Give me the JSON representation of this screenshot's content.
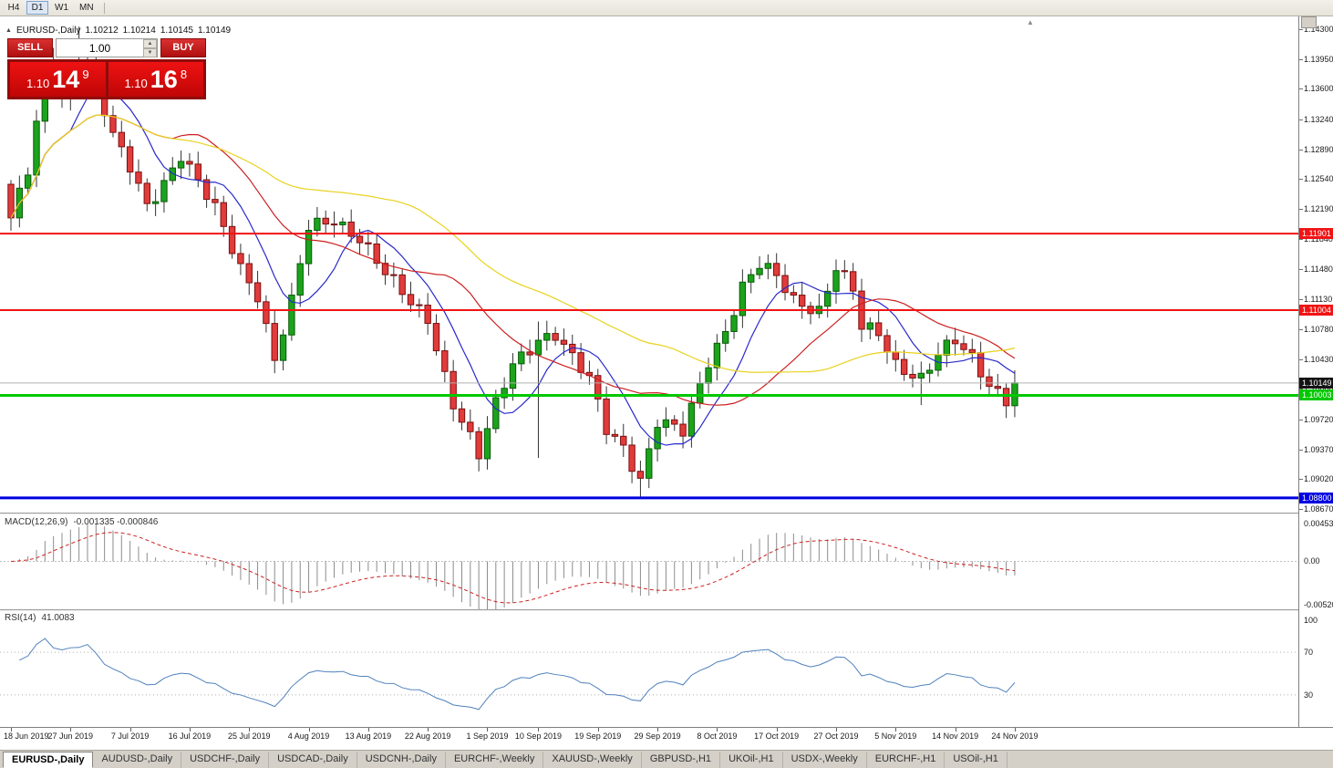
{
  "colors": {
    "bull": "#1ca31c",
    "bear": "#e13b3b",
    "wick": "#333333",
    "ma_fast": "#2929cc",
    "ma_mid": "#cc1f1f",
    "ma_slow": "#e8d21e",
    "macd_hist": "#8c8c8c",
    "macd_signal": "#cc2222",
    "rsi_line": "#4f81bd",
    "level_red": "#f01414",
    "level_green": "#00c800",
    "level_blue": "#0000e0",
    "current_box": "#141414",
    "current_line": "#b0b0b0"
  },
  "icons": {
    "collapse": "▲",
    "shift_marker": "▲",
    "spin_up": "▲",
    "spin_down": "▼"
  },
  "toolbar": {
    "timeframes": [
      {
        "label": "H4",
        "active": false
      },
      {
        "label": "D1",
        "active": true
      },
      {
        "label": "W1",
        "active": false
      },
      {
        "label": "MN",
        "active": false
      }
    ]
  },
  "chart_header": {
    "symbol": "EURUSD-,Daily",
    "open": "1.10212",
    "high": "1.10214",
    "low": "1.10145",
    "close": "1.10149"
  },
  "trade_panel": {
    "sell_label": "SELL",
    "buy_label": "BUY",
    "volume": "1.00",
    "sell_price": {
      "prefix": "1.10",
      "big": "14",
      "sup": "9"
    },
    "buy_price": {
      "prefix": "1.10",
      "big": "16",
      "sup": "8"
    }
  },
  "levels": [
    {
      "label": "1.11901",
      "price": 1.11901,
      "color_key": "level_red",
      "width": 2
    },
    {
      "label": "1.11004",
      "price": 1.11004,
      "color_key": "level_red",
      "width": 2
    },
    {
      "label": "1.10003",
      "price": 1.10003,
      "color_key": "level_green",
      "width": 3
    },
    {
      "label": "1.08800",
      "price": 1.088,
      "color_key": "level_blue",
      "width": 3
    }
  ],
  "current_price": {
    "label": "1.10149",
    "price": 1.10149
  },
  "chart_data": {
    "type": "candlestick",
    "pair": "EURUSD",
    "timeframe": "Daily",
    "y_range": [
      1.0867,
      1.143
    ],
    "y_ticks": [
      "1.14300",
      "1.13950",
      "1.13600",
      "1.13240",
      "1.12890",
      "1.12540",
      "1.12190",
      "1.11840",
      "1.11480",
      "1.11130",
      "1.10780",
      "1.10430",
      "1.10080",
      "1.09720",
      "1.09370",
      "1.09020",
      "1.08670"
    ],
    "num_candles": 119,
    "first_open": 1.1248,
    "close_anchors": [
      [
        0,
        1.1205
      ],
      [
        2,
        1.1262
      ],
      [
        4,
        1.1378
      ],
      [
        6,
        1.1352
      ],
      [
        9,
        1.1392
      ],
      [
        12,
        1.1302
      ],
      [
        14,
        1.1268
      ],
      [
        16,
        1.1225
      ],
      [
        18,
        1.1252
      ],
      [
        20,
        1.1282
      ],
      [
        22,
        1.1248
      ],
      [
        24,
        1.1218
      ],
      [
        27,
        1.1152
      ],
      [
        29,
        1.112
      ],
      [
        31,
        1.1042
      ],
      [
        33,
        1.1108
      ],
      [
        35,
        1.1196
      ],
      [
        38,
        1.1208
      ],
      [
        41,
        1.1186
      ],
      [
        44,
        1.1142
      ],
      [
        47,
        1.1108
      ],
      [
        49,
        1.1092
      ],
      [
        52,
        1.0992
      ],
      [
        55,
        1.0928
      ],
      [
        57,
        1.0988
      ],
      [
        59,
        1.1038
      ],
      [
        62,
        1.1068
      ],
      [
        64,
        1.1072
      ],
      [
        66,
        1.1042
      ],
      [
        68,
        1.1018
      ],
      [
        70,
        1.0962
      ],
      [
        72,
        1.0942
      ],
      [
        74,
        1.0902
      ],
      [
        76,
        1.0968
      ],
      [
        79,
        1.0956
      ],
      [
        82,
        1.1042
      ],
      [
        84,
        1.1078
      ],
      [
        86,
        1.1128
      ],
      [
        88,
        1.1152
      ],
      [
        90,
        1.1138
      ],
      [
        92,
        1.1112
      ],
      [
        95,
        1.1102
      ],
      [
        97,
        1.1152
      ],
      [
        99,
        1.1122
      ],
      [
        100,
        1.1078
      ],
      [
        102,
        1.1072
      ],
      [
        104,
        1.1038
      ],
      [
        107,
        1.1022
      ],
      [
        109,
        1.1048
      ],
      [
        111,
        1.1062
      ],
      [
        113,
        1.1042
      ],
      [
        115,
        1.1014
      ],
      [
        117,
        1.0998
      ],
      [
        118,
        1.10149
      ]
    ],
    "wick_overrides": {
      "5": {
        "high": 1.1408
      },
      "8": {
        "high": 1.1433
      },
      "62": {
        "high": 1.1087,
        "low": 1.0927
      },
      "74": {
        "low": 1.0879
      },
      "107": {
        "low": 1.0989
      }
    },
    "moving_averages": [
      {
        "period": 8,
        "color_key": "ma_fast"
      },
      {
        "period": 20,
        "color_key": "ma_mid"
      },
      {
        "period": 45,
        "color_key": "ma_slow"
      }
    ],
    "x_labels": [
      "18 Jun 2019",
      "27 Jun 2019",
      "7 Jul 2019",
      "16 Jul 2019",
      "25 Jul 2019",
      "4 Aug 2019",
      "13 Aug 2019",
      "22 Aug 2019",
      "1 Sep 2019",
      "10 Sep 2019",
      "19 Sep 2019",
      "29 Sep 2019",
      "8 Oct 2019",
      "17 Oct 2019",
      "27 Oct 2019",
      "5 Nov 2019",
      "14 Nov 2019",
      "24 Nov 2019"
    ]
  },
  "macd_panel": {
    "label": "MACD(12,26,9)",
    "values": "-0.001335 -0.000846",
    "params": [
      12,
      26,
      9
    ],
    "axis_ticks": [
      "0.004536",
      "0.00",
      "-0.005205"
    ],
    "range": [
      -0.005205,
      0.004536
    ]
  },
  "rsi_panel": {
    "label": "RSI(14)",
    "value": "41.0083",
    "period": 14,
    "axis_ticks": [
      "100",
      "70",
      "30"
    ],
    "levels": [
      70,
      30
    ],
    "range": [
      0,
      100
    ]
  },
  "tabs": [
    {
      "label": "EURUSD-,Daily",
      "active": true
    },
    {
      "label": "AUDUSD-,Daily"
    },
    {
      "label": "USDCHF-,Daily"
    },
    {
      "label": "USDCAD-,Daily"
    },
    {
      "label": "USDCNH-,Daily"
    },
    {
      "label": "EURCHF-,Weekly"
    },
    {
      "label": "XAUUSD-,Weekly"
    },
    {
      "label": "GBPUSD-,H1"
    },
    {
      "label": "UKOil-,H1"
    },
    {
      "label": "USDX-,Weekly"
    },
    {
      "label": "EURCHF-,H1"
    },
    {
      "label": "USOil-,H1"
    }
  ]
}
